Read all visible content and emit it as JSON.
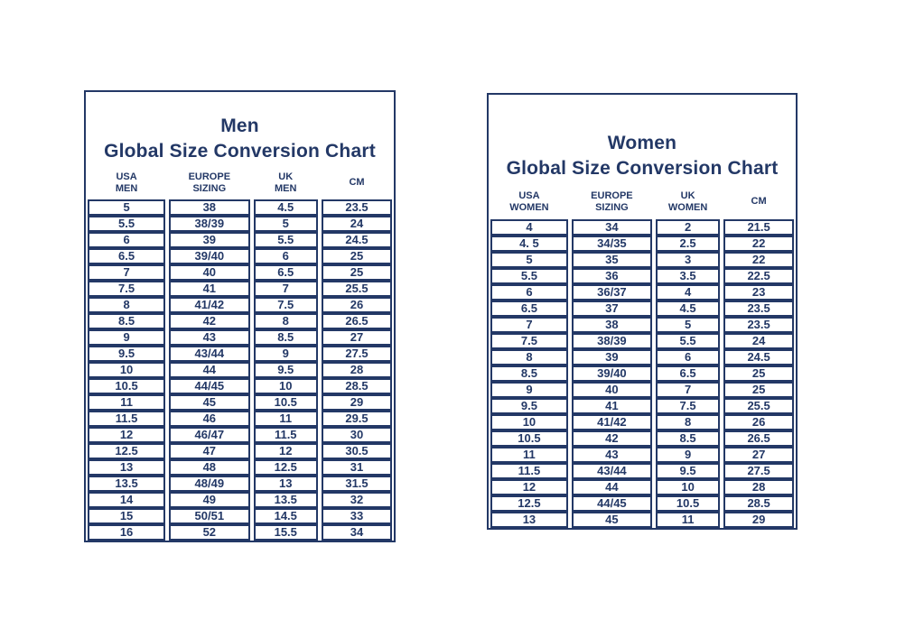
{
  "page": {
    "background_color": "#ffffff",
    "accent_color": "#233866"
  },
  "chart_data": [
    {
      "type": "table",
      "title": "Men",
      "subtitle": "Global Size Conversion Chart",
      "columns": [
        "USA\nMEN",
        "EUROPE\nSIZING",
        "UK\nMEN",
        "CM"
      ],
      "rows": [
        [
          "5",
          "38",
          "4.5",
          "23.5"
        ],
        [
          "5.5",
          "38/39",
          "5",
          "24"
        ],
        [
          "6",
          "39",
          "5.5",
          "24.5"
        ],
        [
          "6.5",
          "39/40",
          "6",
          "25"
        ],
        [
          "7",
          "40",
          "6.5",
          "25"
        ],
        [
          "7.5",
          "41",
          "7",
          "25.5"
        ],
        [
          "8",
          "41/42",
          "7.5",
          "26"
        ],
        [
          "8.5",
          "42",
          "8",
          "26.5"
        ],
        [
          "9",
          "43",
          "8.5",
          "27"
        ],
        [
          "9.5",
          "43/44",
          "9",
          "27.5"
        ],
        [
          "10",
          "44",
          "9.5",
          "28"
        ],
        [
          "10.5",
          "44/45",
          "10",
          "28.5"
        ],
        [
          "11",
          "45",
          "10.5",
          "29"
        ],
        [
          "11.5",
          "46",
          "11",
          "29.5"
        ],
        [
          "12",
          "46/47",
          "11.5",
          "30"
        ],
        [
          "12.5",
          "47",
          "12",
          "30.5"
        ],
        [
          "13",
          "48",
          "12.5",
          "31"
        ],
        [
          "13.5",
          "48/49",
          "13",
          "31.5"
        ],
        [
          "14",
          "49",
          "13.5",
          "32"
        ],
        [
          "15",
          "50/51",
          "14.5",
          "33"
        ],
        [
          "16",
          "52",
          "15.5",
          "34"
        ]
      ]
    },
    {
      "type": "table",
      "title": "Women",
      "subtitle": "Global Size Conversion Chart",
      "columns": [
        "USA\nWOMEN",
        "EUROPE\nSIZING",
        "UK\nWOMEN",
        "CM"
      ],
      "rows": [
        [
          "4",
          "34",
          "2",
          "21.5"
        ],
        [
          "4. 5",
          "34/35",
          "2.5",
          "22"
        ],
        [
          "5",
          "35",
          "3",
          "22"
        ],
        [
          "5.5",
          "36",
          "3.5",
          "22.5"
        ],
        [
          "6",
          "36/37",
          "4",
          "23"
        ],
        [
          "6.5",
          "37",
          "4.5",
          "23.5"
        ],
        [
          "7",
          "38",
          "5",
          "23.5"
        ],
        [
          "7.5",
          "38/39",
          "5.5",
          "24"
        ],
        [
          "8",
          "39",
          "6",
          "24.5"
        ],
        [
          "8.5",
          "39/40",
          "6.5",
          "25"
        ],
        [
          "9",
          "40",
          "7",
          "25"
        ],
        [
          "9.5",
          "41",
          "7.5",
          "25.5"
        ],
        [
          "10",
          "41/42",
          "8",
          "26"
        ],
        [
          "10.5",
          "42",
          "8.5",
          "26.5"
        ],
        [
          "11",
          "43",
          "9",
          "27"
        ],
        [
          "11.5",
          "43/44",
          "9.5",
          "27.5"
        ],
        [
          "12",
          "44",
          "10",
          "28"
        ],
        [
          "12.5",
          "44/45",
          "10.5",
          "28.5"
        ],
        [
          "13",
          "45",
          "11",
          "29"
        ]
      ]
    }
  ]
}
